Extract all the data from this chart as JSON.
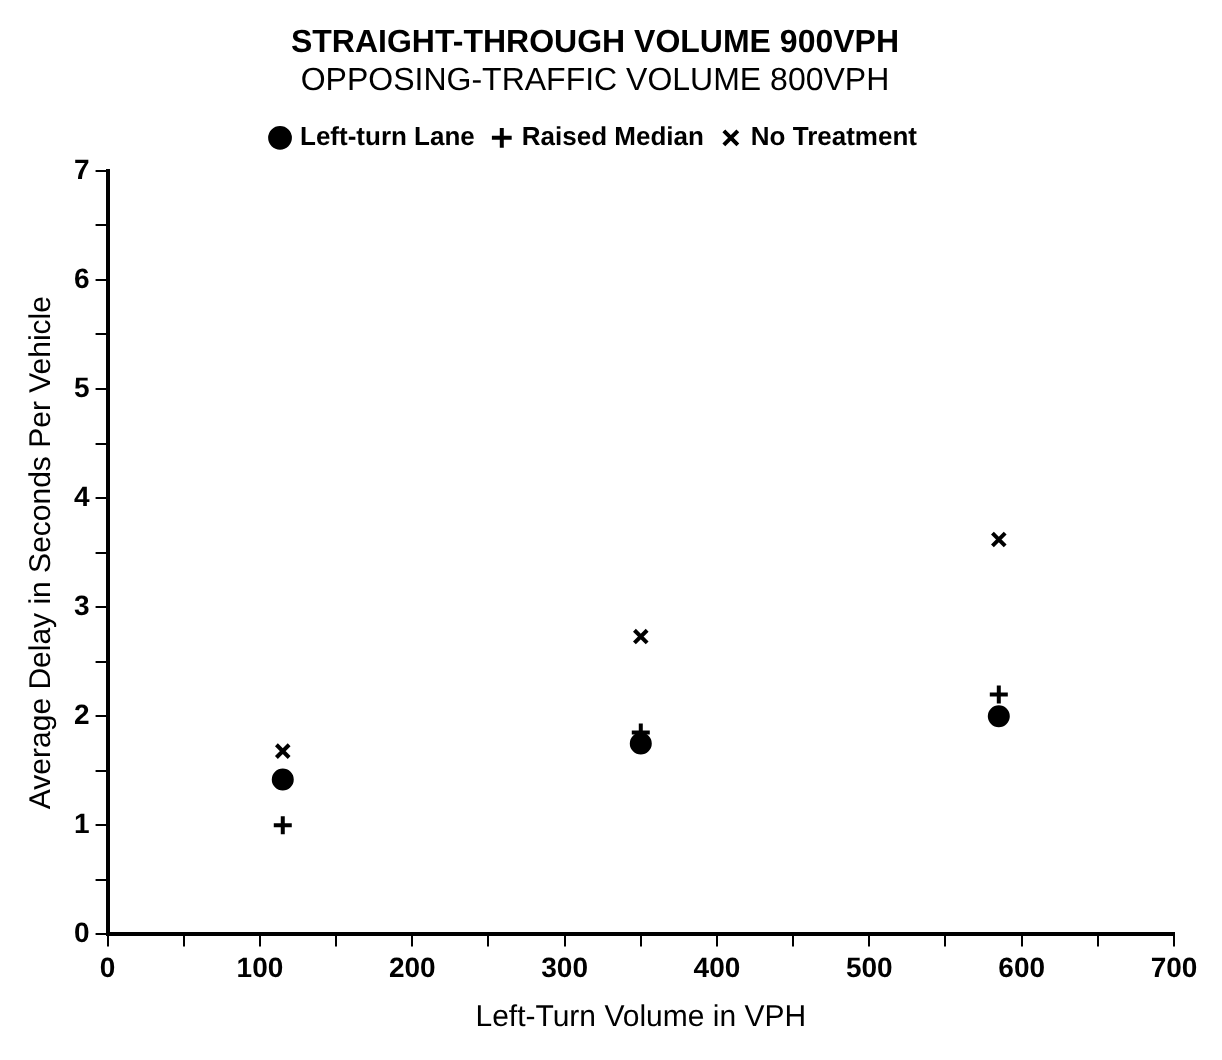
{
  "chart_data": {
    "type": "scatter",
    "title": "STRAIGHT-THROUGH VOLUME 900VPH",
    "subtitle": "OPPOSING-TRAFFIC VOLUME 800VPH",
    "xlabel": "Left-Turn Volume in VPH",
    "ylabel": "Average Delay in Seconds Per Vehicle",
    "x": [
      115,
      350,
      585
    ],
    "series": [
      {
        "name": "Left-turn Lane",
        "color": "#000000",
        "marker": "circle",
        "values": [
          1.42,
          1.75,
          2.0
        ]
      },
      {
        "name": "Raised Median",
        "color": "#000000",
        "marker": "cross",
        "values": [
          1.0,
          1.85,
          2.2
        ]
      },
      {
        "name": "No Treatment",
        "color": "#000000",
        "values": [
          1.68,
          2.73,
          3.62
        ]
      }
    ],
    "xlim": [
      0,
      700
    ],
    "xticks": [
      0,
      {
        "value": 50,
        "label": null
      },
      100,
      {
        "value": 150,
        "label": null
      },
      200,
      {
        "value": 250,
        "label": null
      },
      300,
      {
        "value": 350,
        "label": null
      },
      400,
      {
        "value": 450,
        "label": null
      },
      500,
      {
        "value": 550,
        "label": null
      },
      600,
      {
        "value": 650,
        "label": null
      },
      700
    ],
    "ylim": [
      0,
      7
    ],
    "yticks": [
      0,
      {
        "value": 0.5,
        "label": null
      },
      1,
      {
        "value": 1.5,
        "label": null
      },
      2,
      {
        "value": 2.5,
        "label": null
      },
      3,
      {
        "value": 3.5,
        "label": null
      },
      4,
      {
        "value": 4.5,
        "label": null
      },
      5,
      {
        "value": 5.5,
        "label": null
      },
      6,
      {
        "value": 6.5,
        "label": null
      },
      7
    ],
    "grid": false,
    "legend": "top"
  }
}
